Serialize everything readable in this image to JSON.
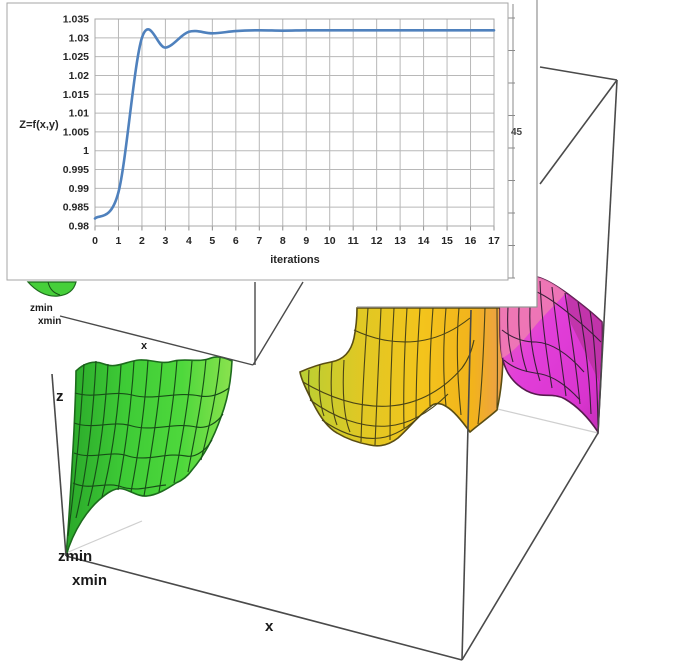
{
  "chart_data": {
    "type": "line",
    "title": "",
    "xlabel": "iterations",
    "ylabel": "Z=f(x,y)",
    "x": [
      0,
      1,
      2,
      3,
      4,
      5,
      6,
      7,
      8,
      9,
      10,
      11,
      12,
      13,
      14,
      15,
      16,
      17
    ],
    "x_tick_labels": [
      "0",
      "1",
      "2",
      "3",
      "4",
      "5",
      "6",
      "7",
      "8",
      "9",
      "10",
      "11",
      "12",
      "13",
      "14",
      "15",
      "16",
      "17"
    ],
    "y_tick_labels": [
      "1.035",
      "1.03",
      "1.025",
      "1.02",
      "1.015",
      "1.01",
      "1.005",
      "1",
      "0.995",
      "0.99",
      "0.985",
      "0.98"
    ],
    "ylim": [
      0.98,
      1.035
    ],
    "ytick_step": 0.005,
    "xlim": [
      0,
      17
    ],
    "grid": true,
    "legend": "none",
    "line_color": "#4F81BD",
    "series": [
      {
        "name": "Z=f(x,y)",
        "values": [
          0.982,
          0.989,
          1.03,
          1.0274,
          1.0316,
          1.0312,
          1.0318,
          1.032,
          1.0319,
          1.032,
          1.032,
          1.032,
          1.032,
          1.032,
          1.032,
          1.032,
          1.032,
          1.032
        ]
      }
    ]
  },
  "back_chart": {
    "tick_label": "45"
  },
  "surface_plot_large": {
    "z_label": "z",
    "zmin_label": "zmin",
    "xmin_label": "xmin",
    "x_label": "x",
    "colors": {
      "left_surface_green": "#3ecb36",
      "middle_surface_yellow": "#f3c41c",
      "right_surface_magenta": "#e23fd9"
    }
  },
  "surface_plot_small": {
    "zmin_label": "zmin",
    "xmin_label": "xmin",
    "x_label": "x"
  }
}
